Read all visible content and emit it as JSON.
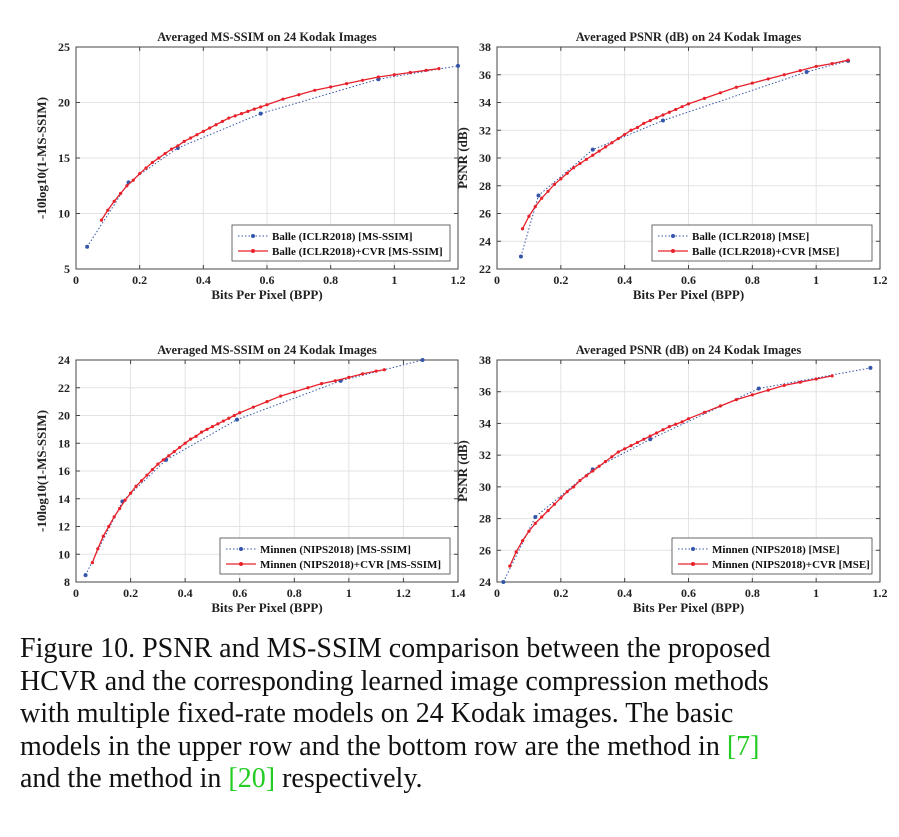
{
  "chart_data": [
    {
      "type": "line",
      "title": "Averaged MS-SSIM on 24 Kodak Images",
      "xlabel": "Bits Per Pixel (BPP)",
      "ylabel": "-10log10(1-MS-SSIM)",
      "xlim": [
        0,
        1.2
      ],
      "ylim": [
        5,
        25
      ],
      "xticks": [
        0,
        0.2,
        0.4,
        0.6,
        0.8,
        1,
        1.2
      ],
      "xtick_labels": [
        "0",
        "0.2",
        "0.4",
        "0.6",
        "0.8",
        "1",
        "1.2"
      ],
      "yticks": [
        5,
        10,
        15,
        20,
        25
      ],
      "ytick_labels": [
        "5",
        "10",
        "15",
        "20",
        "25"
      ],
      "grid": true,
      "legend_position": "bottom-right",
      "series": [
        {
          "name": "Balle (ICLR2018) [MS-SSIM]",
          "style": "blue-dotted-dot",
          "x": [
            0.035,
            0.165,
            0.32,
            0.58,
            0.95,
            1.2
          ],
          "y": [
            7.0,
            12.8,
            15.9,
            19.0,
            22.1,
            23.3
          ]
        },
        {
          "name": "Balle (ICLR2018)+CVR [MS-SSIM]",
          "style": "red-solid-dot",
          "x": [
            0.08,
            0.1,
            0.12,
            0.14,
            0.16,
            0.18,
            0.2,
            0.22,
            0.24,
            0.26,
            0.28,
            0.3,
            0.32,
            0.34,
            0.36,
            0.38,
            0.4,
            0.42,
            0.44,
            0.46,
            0.48,
            0.5,
            0.52,
            0.54,
            0.56,
            0.58,
            0.6,
            0.65,
            0.7,
            0.75,
            0.8,
            0.85,
            0.9,
            0.95,
            1.0,
            1.05,
            1.1,
            1.14
          ],
          "y": [
            9.4,
            10.3,
            11.1,
            11.8,
            12.5,
            13.0,
            13.6,
            14.1,
            14.6,
            15.0,
            15.4,
            15.8,
            16.1,
            16.5,
            16.8,
            17.1,
            17.4,
            17.7,
            18.0,
            18.3,
            18.6,
            18.8,
            19.0,
            19.2,
            19.4,
            19.6,
            19.8,
            20.3,
            20.7,
            21.1,
            21.4,
            21.7,
            22.0,
            22.3,
            22.5,
            22.7,
            22.9,
            23.05
          ]
        }
      ]
    },
    {
      "type": "line",
      "title": "Averaged PSNR (dB) on 24 Kodak Images",
      "xlabel": "Bits Per Pixel (BPP)",
      "ylabel": "PSNR (dB)",
      "xlim": [
        0,
        1.2
      ],
      "ylim": [
        22,
        38
      ],
      "xticks": [
        0,
        0.2,
        0.4,
        0.6,
        0.8,
        1,
        1.2
      ],
      "xtick_labels": [
        "0",
        "0.2",
        "0.4",
        "0.6",
        "0.8",
        "1",
        "1.2"
      ],
      "yticks": [
        22,
        24,
        26,
        28,
        30,
        32,
        34,
        36,
        38
      ],
      "ytick_labels": [
        "22",
        "24",
        "26",
        "28",
        "30",
        "32",
        "34",
        "36",
        "38"
      ],
      "grid": true,
      "legend_position": "bottom-right",
      "series": [
        {
          "name": "Balle (ICLR2018) [MSE]",
          "style": "blue-dotted-dot",
          "x": [
            0.075,
            0.13,
            0.3,
            0.52,
            0.97,
            1.1
          ],
          "y": [
            22.9,
            27.3,
            30.6,
            32.7,
            36.2,
            37.0
          ]
        },
        {
          "name": "Balle (ICLR2018)+CVR [MSE]",
          "style": "red-solid-dot",
          "x": [
            0.08,
            0.1,
            0.12,
            0.14,
            0.16,
            0.18,
            0.2,
            0.22,
            0.24,
            0.26,
            0.28,
            0.3,
            0.32,
            0.34,
            0.36,
            0.38,
            0.4,
            0.42,
            0.44,
            0.46,
            0.48,
            0.5,
            0.52,
            0.54,
            0.56,
            0.58,
            0.6,
            0.65,
            0.7,
            0.75,
            0.8,
            0.85,
            0.9,
            0.95,
            1.0,
            1.05,
            1.1
          ],
          "y": [
            24.9,
            25.8,
            26.5,
            27.1,
            27.6,
            28.1,
            28.5,
            28.9,
            29.3,
            29.6,
            29.9,
            30.2,
            30.5,
            30.8,
            31.1,
            31.4,
            31.7,
            32.0,
            32.2,
            32.5,
            32.7,
            32.9,
            33.1,
            33.3,
            33.5,
            33.7,
            33.9,
            34.3,
            34.7,
            35.1,
            35.4,
            35.7,
            36.0,
            36.3,
            36.6,
            36.8,
            37.05
          ]
        }
      ]
    },
    {
      "type": "line",
      "title": "Averaged MS-SSIM on 24 Kodak Images",
      "xlabel": "Bits Per Pixel (BPP)",
      "ylabel": "-10log10(1-MS-SSIM)",
      "xlim": [
        0,
        1.4
      ],
      "ylim": [
        8,
        24
      ],
      "xticks": [
        0,
        0.2,
        0.4,
        0.6,
        0.8,
        1,
        1.2,
        1.4
      ],
      "xtick_labels": [
        "0",
        "0.2",
        "0.4",
        "0.6",
        "0.8",
        "1",
        "1.2",
        "1.4"
      ],
      "yticks": [
        8,
        10,
        12,
        14,
        16,
        18,
        20,
        22,
        24
      ],
      "ytick_labels": [
        "8",
        "10",
        "12",
        "14",
        "16",
        "18",
        "20",
        "22",
        "24"
      ],
      "grid": true,
      "legend_position": "bottom-right",
      "series": [
        {
          "name": "Minnen (NIPS2018) [MS-SSIM]",
          "style": "blue-dotted-dot",
          "x": [
            0.035,
            0.17,
            0.33,
            0.59,
            0.97,
            1.27
          ],
          "y": [
            8.5,
            13.8,
            16.8,
            19.7,
            22.5,
            24.0
          ]
        },
        {
          "name": "Minnen (NIPS2018)+CVR [MS-SSIM]",
          "style": "red-solid-dot",
          "x": [
            0.06,
            0.08,
            0.1,
            0.12,
            0.14,
            0.16,
            0.18,
            0.2,
            0.22,
            0.24,
            0.26,
            0.28,
            0.3,
            0.32,
            0.34,
            0.36,
            0.38,
            0.4,
            0.42,
            0.44,
            0.46,
            0.48,
            0.5,
            0.52,
            0.54,
            0.56,
            0.58,
            0.6,
            0.65,
            0.7,
            0.75,
            0.8,
            0.85,
            0.9,
            0.95,
            1.0,
            1.05,
            1.1,
            1.13
          ],
          "y": [
            9.4,
            10.4,
            11.3,
            12.0,
            12.7,
            13.3,
            13.9,
            14.4,
            14.9,
            15.3,
            15.7,
            16.1,
            16.5,
            16.8,
            17.1,
            17.4,
            17.7,
            18.0,
            18.3,
            18.5,
            18.8,
            19.0,
            19.2,
            19.4,
            19.6,
            19.8,
            20.0,
            20.2,
            20.6,
            21.0,
            21.4,
            21.7,
            22.0,
            22.3,
            22.5,
            22.75,
            23.0,
            23.2,
            23.3
          ]
        }
      ]
    },
    {
      "type": "line",
      "title": "Averaged PSNR (dB) on 24 Kodak Images",
      "xlabel": "Bits Per Pixel (BPP)",
      "ylabel": "PSNR (dB)",
      "xlim": [
        0,
        1.2
      ],
      "ylim": [
        24,
        38
      ],
      "xticks": [
        0,
        0.2,
        0.4,
        0.6,
        0.8,
        1,
        1.2
      ],
      "xtick_labels": [
        "0",
        "0.2",
        "0.4",
        "0.6",
        "0.8",
        "1",
        "1.2"
      ],
      "yticks": [
        24,
        26,
        28,
        30,
        32,
        34,
        36,
        38
      ],
      "ytick_labels": [
        "24",
        "26",
        "28",
        "30",
        "32",
        "34",
        "36",
        "38"
      ],
      "grid": true,
      "legend_position": "bottom-right",
      "series": [
        {
          "name": "Minnen (NIPS2018) [MSE]",
          "style": "blue-dotted-dot",
          "x": [
            0.02,
            0.12,
            0.3,
            0.48,
            0.82,
            1.17
          ],
          "y": [
            24.0,
            28.1,
            31.1,
            33.0,
            36.2,
            37.5
          ]
        },
        {
          "name": "Minnen (NIPS2018)+CVR [MSE]",
          "style": "red-solid-dot",
          "x": [
            0.04,
            0.06,
            0.08,
            0.1,
            0.12,
            0.14,
            0.16,
            0.18,
            0.2,
            0.22,
            0.24,
            0.26,
            0.28,
            0.3,
            0.32,
            0.34,
            0.36,
            0.38,
            0.4,
            0.42,
            0.44,
            0.46,
            0.48,
            0.5,
            0.52,
            0.54,
            0.56,
            0.58,
            0.6,
            0.65,
            0.7,
            0.75,
            0.8,
            0.85,
            0.9,
            0.95,
            1.0,
            1.05
          ],
          "y": [
            25.0,
            25.9,
            26.6,
            27.2,
            27.7,
            28.1,
            28.5,
            28.9,
            29.3,
            29.7,
            30.0,
            30.4,
            30.7,
            31.0,
            31.3,
            31.6,
            31.9,
            32.2,
            32.4,
            32.6,
            32.8,
            33.0,
            33.2,
            33.4,
            33.6,
            33.8,
            33.95,
            34.1,
            34.3,
            34.7,
            35.1,
            35.5,
            35.8,
            36.1,
            36.4,
            36.6,
            36.8,
            37.0
          ]
        }
      ]
    }
  ],
  "caption": {
    "lines": [
      "Figure 10. PSNR and MS-SSIM comparison between the proposed",
      "HCVR and the corresponding learned image compression methods",
      "with multiple fixed-rate models on 24 Kodak images.  The basic",
      "models in the upper row and the bottom row are the method in "
    ],
    "ref1": "[7]",
    "last_prefix": "and the method in ",
    "ref2": "[20]",
    "last_suffix": " respectively.",
    "ref_color": "#22cc22"
  },
  "colors": {
    "blue": "#3355aa",
    "red": "#e8202a",
    "grid": "#e3e3e3",
    "axis": "#444444"
  }
}
